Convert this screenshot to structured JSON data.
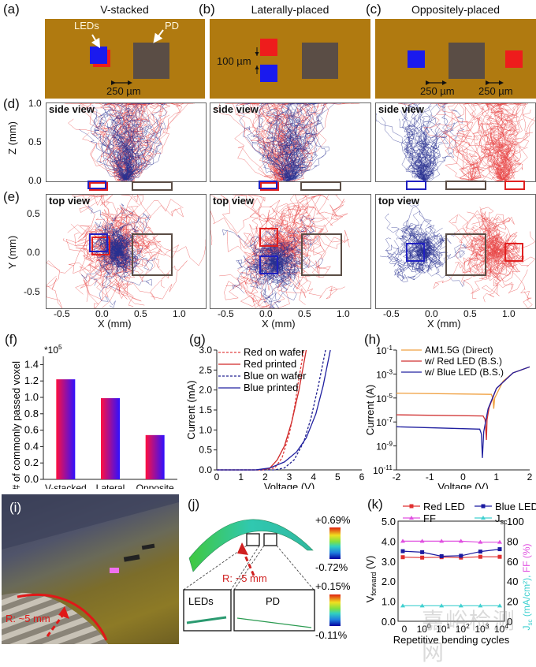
{
  "panel_labels": {
    "a": "(a)",
    "b": "(b)",
    "c": "(c)",
    "d": "(d)",
    "e": "(e)",
    "f": "(f)",
    "g": "(g)",
    "h": "(h)",
    "i": "(i)",
    "j": "(j)",
    "k": "(k)"
  },
  "schematics": {
    "a": {
      "title": "V-stacked",
      "leds_label": "LEDs",
      "pd_label": "PD",
      "gap_label": "250 µm"
    },
    "b": {
      "title": "Laterally-placed",
      "gap_label": "100 µm"
    },
    "c": {
      "title": "Oppositely-placed",
      "gap_label_left": "250 µm",
      "gap_label_right": "250 µm"
    },
    "colors": {
      "substrate": "#b07a10",
      "pd": "#5a4d45",
      "red_led": "#ee1c1c",
      "blue_led": "#1a1aee"
    }
  },
  "side_view": {
    "label": "side view",
    "ylabel": "Z (mm)",
    "yticks": [
      "1.0",
      "0.5",
      "0.0"
    ],
    "ylim": [
      0,
      1.0
    ]
  },
  "top_view": {
    "label": "top view",
    "ylabel": "Y (mm)",
    "yticks": [
      "0.5",
      "0.0",
      "-0.5"
    ],
    "xlabel": "X (mm)",
    "xticks": [
      "-0.5",
      "0.0",
      "0.5",
      "1.0"
    ],
    "xlim": [
      -0.7,
      1.2
    ],
    "ylim": [
      -0.75,
      0.75
    ]
  },
  "chart_data": [
    {
      "id": "f",
      "type": "bar",
      "title": "",
      "xlabel": "",
      "ylabel": "# of commonly passed voxel",
      "multiplier": "*10^5",
      "multiplier_base": "*10",
      "multiplier_exp": "5",
      "categories": [
        "V-stacked",
        "Lateral",
        "Opposite"
      ],
      "values": [
        1.22,
        0.99,
        0.54
      ],
      "ylim": [
        0,
        1.5
      ],
      "yticks": [
        "0.0",
        "0.2",
        "0.4",
        "0.6",
        "0.8",
        "1.0",
        "1.2",
        "1.4"
      ],
      "ytick_values": [
        0,
        0.2,
        0.4,
        0.6,
        0.8,
        1.0,
        1.2,
        1.4
      ],
      "bar_gradient": [
        "#ff1040",
        "#3010ff"
      ]
    },
    {
      "id": "g",
      "type": "line",
      "xlabel": "Voltage (V)",
      "ylabel": "Current (mA)",
      "xlim": [
        0,
        6
      ],
      "ylim": [
        0,
        3.0
      ],
      "xticks": [
        "0",
        "1",
        "2",
        "3",
        "4",
        "5",
        "6"
      ],
      "xtick_values": [
        0,
        1,
        2,
        3,
        4,
        5,
        6
      ],
      "yticks": [
        "0.0",
        "0.5",
        "1.0",
        "1.5",
        "2.0",
        "2.5",
        "3.0"
      ],
      "ytick_values": [
        0,
        0.5,
        1,
        1.5,
        2,
        2.5,
        3
      ],
      "series": [
        {
          "name": "Red on wafer",
          "color": "#e04040",
          "dash": true,
          "x": [
            0,
            2.0,
            2.4,
            2.7,
            3.0,
            3.2,
            3.4,
            3.6
          ],
          "y": [
            0,
            0,
            0.05,
            0.3,
            0.9,
            1.5,
            2.3,
            3.0
          ]
        },
        {
          "name": "Red printed",
          "color": "#d02828",
          "dash": false,
          "x": [
            0,
            1.9,
            2.2,
            2.5,
            2.8,
            3.1,
            3.4,
            3.7
          ],
          "y": [
            0,
            0,
            0.05,
            0.25,
            0.6,
            1.2,
            2.0,
            3.0
          ]
        },
        {
          "name": "Blue on wafer",
          "color": "#202090",
          "dash": true,
          "x": [
            0,
            2.4,
            2.8,
            3.2,
            3.6,
            3.9,
            4.2,
            4.5
          ],
          "y": [
            0,
            0,
            0.05,
            0.25,
            0.7,
            1.3,
            2.1,
            3.0
          ]
        },
        {
          "name": "Blue printed",
          "color": "#2020a0",
          "dash": false,
          "x": [
            0,
            1.6,
            2.2,
            2.8,
            3.3,
            3.7,
            4.1,
            4.4,
            4.7
          ],
          "y": [
            0,
            0,
            0.05,
            0.2,
            0.45,
            0.8,
            1.4,
            2.1,
            3.0
          ]
        }
      ]
    },
    {
      "id": "h",
      "type": "line",
      "yscale": "log",
      "xlabel": "Voltage (V)",
      "ylabel": "Current (A)",
      "xlim": [
        -2,
        2
      ],
      "ylim_exp": [
        -11,
        -1
      ],
      "xticks": [
        "-2",
        "-1",
        "0",
        "1",
        "2"
      ],
      "xtick_values": [
        -2,
        -1,
        0,
        1,
        2
      ],
      "yticks": [
        {
          "base": "10",
          "exp": "-1"
        },
        {
          "base": "10",
          "exp": "-3"
        },
        {
          "base": "10",
          "exp": "-5"
        },
        {
          "base": "10",
          "exp": "-7"
        },
        {
          "base": "10",
          "exp": "-9"
        },
        {
          "base": "10",
          "exp": "-11"
        }
      ],
      "ytick_exps": [
        -1,
        -3,
        -5,
        -7,
        -9,
        -11
      ],
      "series": [
        {
          "name": "AM1.5G (Direct)",
          "color": "#f0a040",
          "x": [
            -2,
            0.85,
            0.9,
            0.92,
            0.95,
            1.2,
            1.5,
            2.0
          ],
          "log10y": [
            -4.6,
            -4.7,
            -5.1,
            -5.9,
            -5.0,
            -3.6,
            -2.9,
            -2.4
          ]
        },
        {
          "name": "w/ Red LED (B.S.)",
          "color": "#d03030",
          "x": [
            -2,
            0.6,
            0.66,
            0.7,
            0.72,
            0.78,
            1.0,
            1.5,
            2.0
          ],
          "log10y": [
            -6.4,
            -6.5,
            -6.8,
            -8.5,
            -6.8,
            -5.8,
            -4.2,
            -2.9,
            -2.4
          ]
        },
        {
          "name": "w/ Blue LED (B.S.)",
          "color": "#2020a0",
          "x": [
            -2,
            0.5,
            0.55,
            0.58,
            0.62,
            0.75,
            1.0,
            1.5,
            2.0
          ],
          "log10y": [
            -7.4,
            -7.6,
            -8.0,
            -10.0,
            -7.8,
            -5.9,
            -4.2,
            -2.9,
            -2.4
          ]
        }
      ]
    },
    {
      "id": "k",
      "type": "line",
      "xlabel": "Repetitive bending cycles",
      "ylabel_left": "V",
      "ylabel_left_sub": "forward",
      "ylabel_left_unit": " (V)",
      "ylabel_right_jsc": "J",
      "ylabel_right_jsc_sub": "sc",
      "ylabel_right_jsc_unit": " (mA/cm²), ",
      "ylabel_right_ff": "FF (%)",
      "categories": [
        {
          "b": "0",
          "e": ""
        },
        {
          "b": "10",
          "e": "0"
        },
        {
          "b": "10",
          "e": "1"
        },
        {
          "b": "10",
          "e": "2"
        },
        {
          "b": "10",
          "e": "3"
        },
        {
          "b": "10",
          "e": "4"
        }
      ],
      "ylim_left": [
        0,
        5.0
      ],
      "ylim_right": [
        0,
        100
      ],
      "yticks_left": [
        "0.0",
        "1.0",
        "2.0",
        "3.0",
        "4.0",
        "5.0"
      ],
      "ytick_left_values": [
        0,
        1,
        2,
        3,
        4,
        5
      ],
      "yticks_right": [
        "0",
        "20",
        "40",
        "60",
        "80",
        "100"
      ],
      "ytick_right_values": [
        0,
        20,
        40,
        60,
        80,
        100
      ],
      "series": [
        {
          "name": "Red LED",
          "axis": "left",
          "marker": "square",
          "color": "#e03030",
          "values": [
            3.2,
            3.18,
            3.2,
            3.18,
            3.22,
            3.22
          ]
        },
        {
          "name": "Blue LED",
          "axis": "left",
          "marker": "square",
          "color": "#1a1aa0",
          "values": [
            3.5,
            3.45,
            3.25,
            3.27,
            3.48,
            3.6
          ]
        },
        {
          "name": "FF",
          "axis": "right",
          "marker": "triangle",
          "color": "#e050e0",
          "values": [
            80,
            80,
            80,
            80,
            79,
            79
          ]
        },
        {
          "name": "Jsc",
          "axis": "right",
          "marker": "triangle",
          "color": "#40d0d0",
          "values": [
            15.5,
            15.5,
            15.5,
            15.5,
            15.5,
            15.5
          ]
        }
      ],
      "legend": [
        {
          "name": "Red LED",
          "sub": ""
        },
        {
          "name": "FF",
          "sub": ""
        },
        {
          "name": "Blue LED",
          "sub": ""
        },
        {
          "name": "J",
          "sub": "sc"
        }
      ]
    }
  ],
  "photo": {
    "radius_label": "R: ~5 mm"
  },
  "simulation": {
    "radius_label": "R: ~5 mm",
    "leds_label": "LEDs",
    "pd_label": "PD",
    "scale_top_max": "+0.69%",
    "scale_top_min": "-0.72%",
    "scale_bottom_max": "+0.15%",
    "scale_bottom_min": "-0.11%"
  },
  "watermark": "嘉峪检测网"
}
